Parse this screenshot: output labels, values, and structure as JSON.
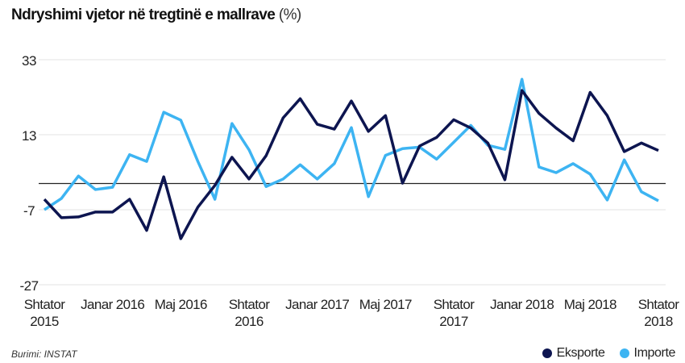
{
  "title": "Ndryshimi vjetor në tregtinë e mallrave",
  "title_unit": "(%)",
  "source": "Burimi: INSTAT",
  "chart_data": {
    "type": "line",
    "title": "Ndryshimi vjetor në tregtinë e mallrave (%)",
    "ylim": [
      -27,
      33
    ],
    "yticks": [
      "33",
      "13",
      "-7",
      "-27"
    ],
    "ytick_values": [
      33,
      13,
      -7,
      -27
    ],
    "xtick_labels": [
      {
        "index": 0,
        "lines": [
          "Shtator",
          "2015"
        ]
      },
      {
        "index": 4,
        "lines": [
          "Janar 2016"
        ]
      },
      {
        "index": 8,
        "lines": [
          "Maj 2016"
        ]
      },
      {
        "index": 12,
        "lines": [
          "Shtator",
          "2016"
        ]
      },
      {
        "index": 16,
        "lines": [
          "Janar 2017"
        ]
      },
      {
        "index": 20,
        "lines": [
          "Maj 2017"
        ]
      },
      {
        "index": 24,
        "lines": [
          "Shtator",
          "2017"
        ]
      },
      {
        "index": 28,
        "lines": [
          "Janar 2018"
        ]
      },
      {
        "index": 32,
        "lines": [
          "Maj 2018"
        ]
      },
      {
        "index": 36,
        "lines": [
          "Shtator",
          "2018"
        ]
      }
    ],
    "x_range": "Shtator 2015 – Shtator 2018 (monthly)",
    "grid": true,
    "legend_position": "bottom-right",
    "series": [
      {
        "name": "Eksporte",
        "color": "#0d1550",
        "values": [
          -4.2,
          -9.1,
          -8.9,
          -7.6,
          -7.6,
          -4.2,
          -12.5,
          1.8,
          -14.7,
          -6.3,
          -0.5,
          7.0,
          1.2,
          7.4,
          17.5,
          22.6,
          15.8,
          14.5,
          22.0,
          13.9,
          18.1,
          0.1,
          10.0,
          12.3,
          17.0,
          14.8,
          10.8,
          1.0,
          24.8,
          18.7,
          14.8,
          11.4,
          24.3,
          18.1,
          8.5,
          10.8,
          8.8
        ]
      },
      {
        "name": "Importe",
        "color": "#3db4f2",
        "values": [
          -7.0,
          -4.0,
          2.0,
          -1.6,
          -1.0,
          7.7,
          5.9,
          19.0,
          16.9,
          5.9,
          -4.2,
          16.0,
          9.0,
          -0.8,
          1.2,
          5.0,
          1.2,
          5.3,
          14.9,
          -3.5,
          7.5,
          9.3,
          9.7,
          6.5,
          11.0,
          15.5,
          10.2,
          9.1,
          27.8,
          4.4,
          2.9,
          5.3,
          2.5,
          -4.4,
          6.3,
          -2.2,
          -4.6
        ]
      }
    ]
  }
}
